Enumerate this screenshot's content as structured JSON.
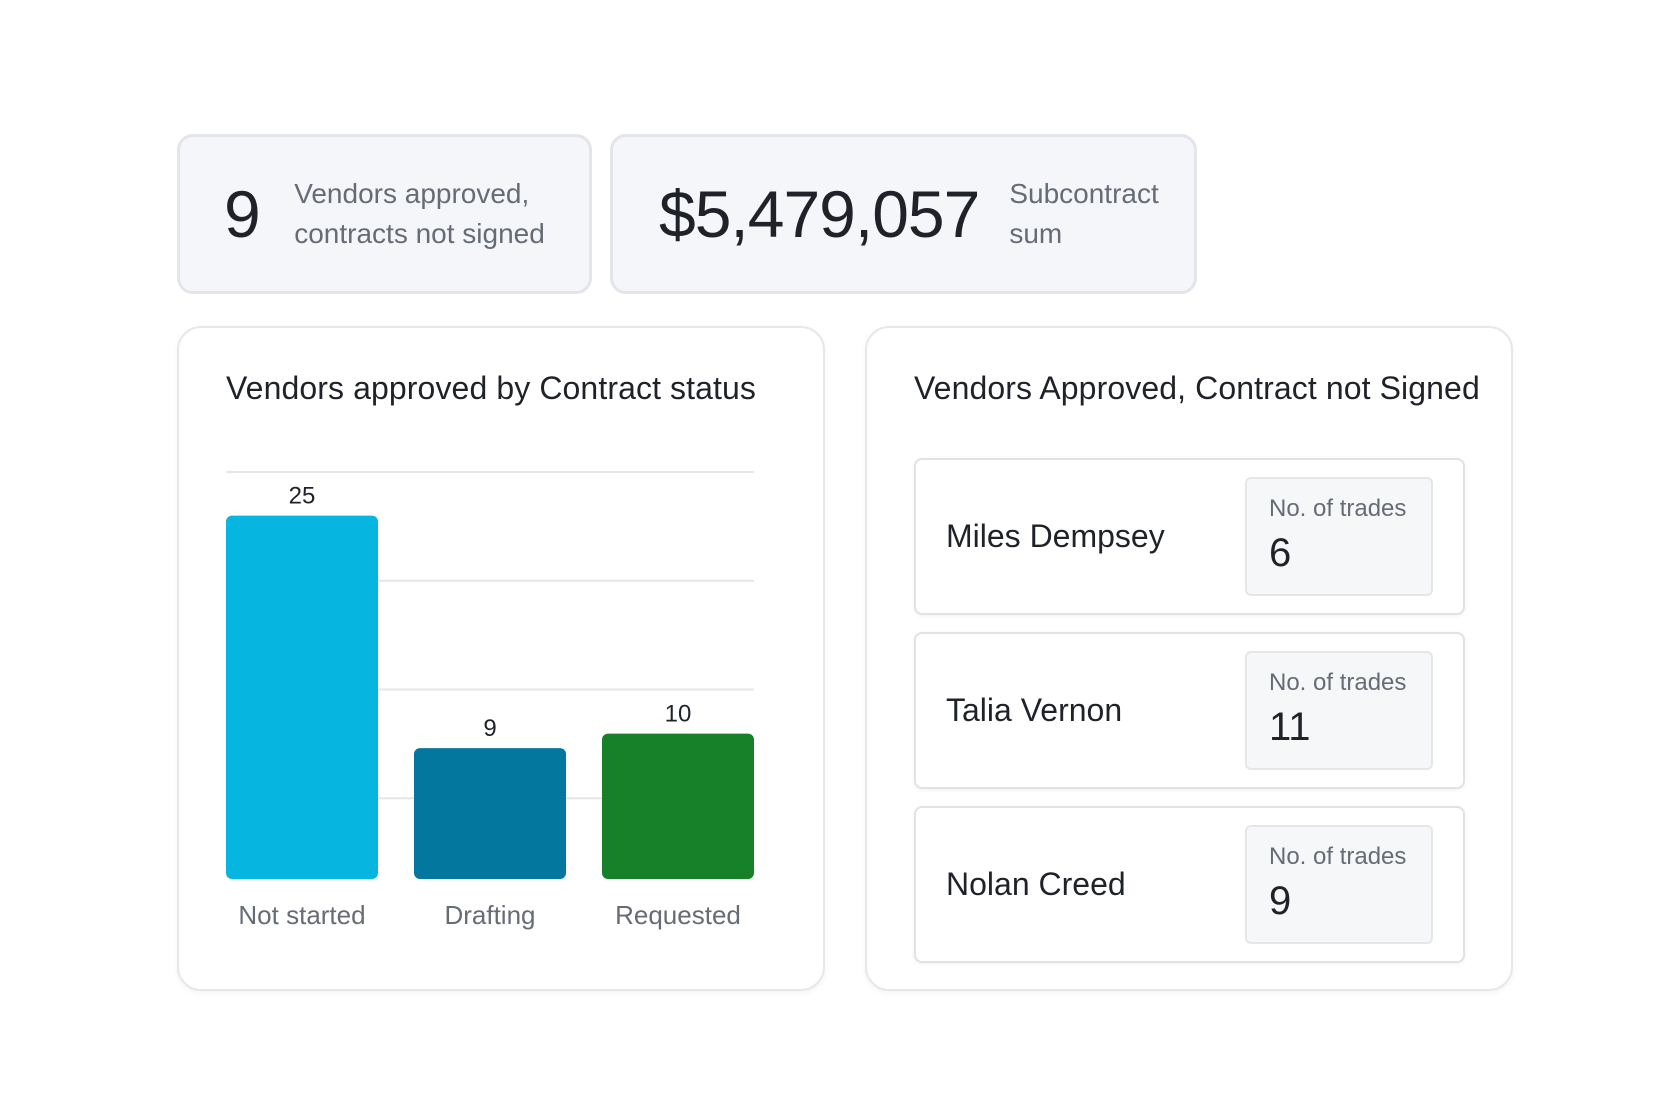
{
  "kpis": {
    "vendors": {
      "value": "9",
      "label_line1": "Vendors approved,",
      "label_line2": "contracts not signed"
    },
    "subcontract": {
      "value": "$5,479,057",
      "label_line1": "Subcontract",
      "label_line2": "sum"
    }
  },
  "chart_panel": {
    "title": "Vendors approved by Contract status"
  },
  "chart_data": {
    "type": "bar",
    "title": "Vendors approved by Contract status",
    "categories": [
      "Not started",
      "Drafting",
      "Requested"
    ],
    "values": [
      25,
      9,
      10
    ],
    "colors": [
      "#07b6e0",
      "#04779e",
      "#178129"
    ],
    "ylim": [
      0,
      28
    ],
    "grid": true,
    "xlabel": "",
    "ylabel": ""
  },
  "list_panel": {
    "title": "Vendors Approved, Contract not Signed",
    "vendors": [
      {
        "name": "Miles Dempsey",
        "trades_label": "No. of trades",
        "trades": "6"
      },
      {
        "name": "Talia Vernon",
        "trades_label": "No. of trades",
        "trades": "11"
      },
      {
        "name": "Nolan Creed",
        "trades_label": "No. of trades",
        "trades": "9"
      }
    ]
  }
}
